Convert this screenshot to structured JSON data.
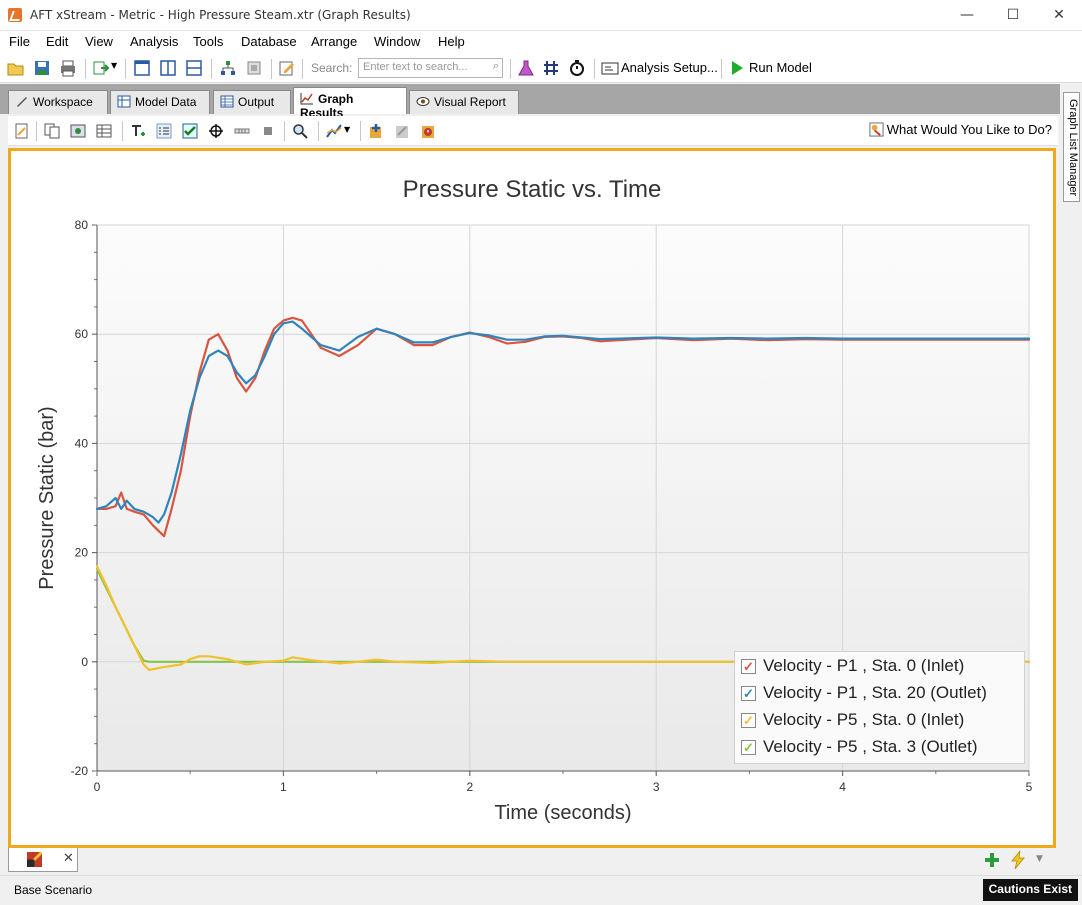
{
  "window": {
    "title": "AFT xStream - Metric - High Pressure Steam.xtr (Graph Results)",
    "minimize": "—",
    "maximize": "☐",
    "close": "✕"
  },
  "menu": [
    "File",
    "Edit",
    "View",
    "Analysis",
    "Tools",
    "Database",
    "Arrange",
    "Window",
    "Help"
  ],
  "toolbar": {
    "search_label": "Search:",
    "search_placeholder": "Enter text to search...",
    "analysis_setup": "Analysis Setup...",
    "run_model": "Run Model"
  },
  "tabs": [
    "Workspace",
    "Model Data",
    "Output",
    "Graph Results",
    "Visual Report"
  ],
  "active_tab": "Graph Results",
  "sidebar": {
    "graph_list_manager": "Graph List Manager"
  },
  "graph_toolbar": {
    "help": "What Would You Like to Do?"
  },
  "status": {
    "scenario": "Base Scenario",
    "cautions": "Cautions Exist"
  },
  "chart_data": {
    "type": "line",
    "title": "Pressure Static vs. Time",
    "xlabel": "Time (seconds)",
    "ylabel": "Pressure Static (bar)",
    "xlim": [
      0,
      5
    ],
    "ylim": [
      -20,
      80
    ],
    "xticks": [
      0,
      1,
      2,
      3,
      4,
      5
    ],
    "yticks": [
      -20,
      0,
      20,
      40,
      60,
      80
    ],
    "grid": true,
    "legend_position": "bottom-right",
    "series": [
      {
        "name": "Velocity - P1 , Sta. 0 (Inlet)",
        "color": "#d9553f",
        "x": [
          0,
          0.05,
          0.1,
          0.13,
          0.16,
          0.2,
          0.25,
          0.3,
          0.33,
          0.36,
          0.4,
          0.45,
          0.5,
          0.55,
          0.6,
          0.65,
          0.7,
          0.75,
          0.8,
          0.85,
          0.9,
          0.95,
          1.0,
          1.05,
          1.1,
          1.15,
          1.2,
          1.3,
          1.4,
          1.5,
          1.6,
          1.7,
          1.8,
          1.9,
          2.0,
          2.1,
          2.2,
          2.3,
          2.4,
          2.5,
          2.6,
          2.7,
          2.8,
          3.0,
          3.2,
          3.4,
          3.6,
          3.8,
          4.0,
          4.5,
          5.0
        ],
        "y": [
          28,
          28,
          28.5,
          31,
          28,
          27.5,
          27,
          25,
          24,
          23,
          28,
          35,
          45,
          53,
          59,
          60,
          57,
          52,
          49.5,
          52,
          57,
          61,
          62.5,
          63,
          62.5,
          60,
          57.5,
          56,
          58,
          61,
          60,
          58,
          58,
          59.5,
          60.3,
          59.5,
          58.3,
          58.6,
          59.5,
          59.6,
          59.3,
          58.7,
          58.9,
          59.3,
          58.9,
          59.2,
          58.9,
          59.1,
          59,
          59,
          59
        ]
      },
      {
        "name": "Velocity - P1 , Sta. 20 (Outlet)",
        "color": "#2f84bd",
        "x": [
          0,
          0.05,
          0.1,
          0.13,
          0.16,
          0.2,
          0.25,
          0.3,
          0.33,
          0.36,
          0.4,
          0.45,
          0.5,
          0.55,
          0.6,
          0.65,
          0.7,
          0.75,
          0.8,
          0.85,
          0.9,
          0.95,
          1.0,
          1.05,
          1.1,
          1.15,
          1.2,
          1.3,
          1.4,
          1.5,
          1.6,
          1.7,
          1.8,
          1.9,
          2.0,
          2.1,
          2.2,
          2.3,
          2.4,
          2.5,
          2.6,
          2.7,
          2.8,
          3.0,
          3.2,
          3.4,
          3.6,
          3.8,
          4.0,
          4.5,
          5.0
        ],
        "y": [
          28,
          28.5,
          30,
          28,
          29.5,
          28,
          27.5,
          26.5,
          25.5,
          27,
          31,
          38,
          46,
          52,
          56,
          57,
          56,
          53,
          51,
          52.5,
          56,
          60,
          62,
          62.3,
          61,
          59.5,
          58,
          57,
          59.5,
          61,
          60,
          58.5,
          58.5,
          59.5,
          60.2,
          59.8,
          59,
          59,
          59.6,
          59.7,
          59.4,
          59.1,
          59.2,
          59.4,
          59.2,
          59.3,
          59.2,
          59.3,
          59.2,
          59.2,
          59.2
        ]
      },
      {
        "name": "Velocity - P5 , Sta. 0 (Inlet)",
        "color": "#f2c12e",
        "x": [
          0,
          0.05,
          0.1,
          0.15,
          0.2,
          0.25,
          0.28,
          0.35,
          0.45,
          0.5,
          0.55,
          0.6,
          0.7,
          0.8,
          0.9,
          1.0,
          1.05,
          1.15,
          1.3,
          1.4,
          1.5,
          1.6,
          1.8,
          2.0,
          2.2,
          2.4,
          3.0,
          4.0,
          5.0
        ],
        "y": [
          17.5,
          14,
          10,
          6.5,
          3,
          -0.5,
          -1.5,
          -1,
          -0.5,
          0.5,
          1,
          1,
          0.5,
          -0.5,
          0,
          0.2,
          0.8,
          0.3,
          -0.3,
          0,
          0.4,
          0,
          -0.2,
          0.2,
          0,
          0,
          0,
          0,
          0
        ]
      },
      {
        "name": "Velocity - P5 , Sta. 3 (Outlet)",
        "color": "#8bc34a",
        "x": [
          0,
          0.05,
          0.1,
          0.15,
          0.2,
          0.25,
          0.28,
          0.35,
          0.5,
          1.0,
          2.0,
          3.0,
          4.0,
          5.0
        ],
        "y": [
          17,
          13.5,
          10,
          6.5,
          3,
          0.2,
          0,
          0,
          0,
          0,
          0,
          0,
          0,
          0
        ]
      }
    ]
  }
}
